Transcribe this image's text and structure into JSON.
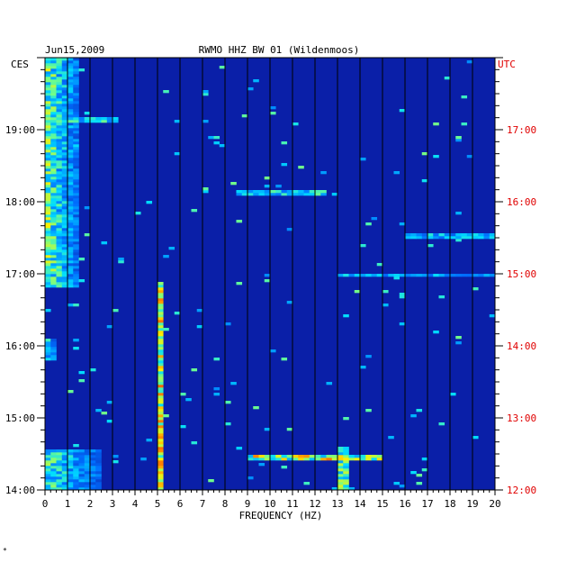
{
  "chart_data": {
    "type": "heatmap",
    "title": "RWMO HHZ BW 01 (Wildenmoos)",
    "date": "Jun15,2009",
    "left_zone": "CES",
    "right_zone": "UTC",
    "xlabel": "FREQUENCY (HZ)",
    "xlim": [
      0,
      20
    ],
    "x_ticks": [
      "0",
      "1",
      "2",
      "3",
      "4",
      "5",
      "6",
      "7",
      "8",
      "9",
      "10",
      "11",
      "12",
      "13",
      "14",
      "15",
      "16",
      "17",
      "18",
      "19",
      "20"
    ],
    "ylim_ces_hours": [
      14,
      20
    ],
    "y_ticks_left": [
      {
        "label": "19:00",
        "hour": 19
      },
      {
        "label": "18:00",
        "hour": 18
      },
      {
        "label": "17:00",
        "hour": 17
      },
      {
        "label": "16:00",
        "hour": 16
      },
      {
        "label": "15:00",
        "hour": 15
      },
      {
        "label": "14:00",
        "hour": 14
      }
    ],
    "y_ticks_right": [
      {
        "label": "17:00",
        "hour": 19
      },
      {
        "label": "16:00",
        "hour": 18
      },
      {
        "label": "15:00",
        "hour": 17
      },
      {
        "label": "14:00",
        "hour": 16
      },
      {
        "label": "13:00",
        "hour": 15
      },
      {
        "label": "12:00",
        "hour": 14
      }
    ],
    "grid": true,
    "colors": {
      "background": "#0a1fa8",
      "grid": "#000000",
      "right_axis": "#e00000"
    },
    "features": [
      {
        "name": "low-frequency noise band",
        "f_from": 0,
        "f_to": 1.5,
        "t_from": 16.8,
        "t_to": 20.0,
        "intensity": 0.8
      },
      {
        "name": "low-frequency noise band",
        "f_from": 0,
        "f_to": 0.5,
        "t_from": 15.8,
        "t_to": 16.1,
        "intensity": 0.7
      },
      {
        "name": "low-frequency noise band",
        "f_from": 0,
        "f_to": 2.5,
        "t_from": 14.0,
        "t_to": 14.55,
        "intensity": 0.7
      },
      {
        "name": "narrow line near 5 Hz",
        "f": 5.1,
        "t_from": 14.0,
        "t_to": 16.9,
        "intensity": 0.9
      },
      {
        "name": "narrow line near 13.2 Hz",
        "f": 13.2,
        "t_from": 14.0,
        "t_to": 14.6,
        "intensity": 0.7
      },
      {
        "name": "event band",
        "t": 14.46,
        "f_from": 9,
        "f_to": 15,
        "intensity": 0.9
      },
      {
        "name": "event band",
        "t": 18.12,
        "f_from": 8.5,
        "f_to": 12.5,
        "intensity": 0.6
      },
      {
        "name": "event band",
        "t": 16.98,
        "f_from": 13,
        "f_to": 20,
        "intensity": 0.5
      },
      {
        "name": "event band",
        "t": 17.53,
        "f_from": 16,
        "f_to": 20,
        "intensity": 0.5
      },
      {
        "name": "event band",
        "t": 19.14,
        "f_from": 0.5,
        "f_to": 3.2,
        "intensity": 0.6
      }
    ]
  }
}
